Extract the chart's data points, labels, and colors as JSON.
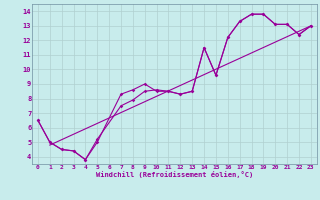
{
  "xlabel": "Windchill (Refroidissement éolien,°C)",
  "bg_color": "#c8ecec",
  "line_color": "#990099",
  "grid_color": "#b0d0d0",
  "xlim": [
    -0.5,
    23.5
  ],
  "ylim": [
    3.5,
    14.5
  ],
  "xticks": [
    0,
    1,
    2,
    3,
    4,
    5,
    6,
    7,
    8,
    9,
    10,
    11,
    12,
    13,
    14,
    15,
    16,
    17,
    18,
    19,
    20,
    21,
    22,
    23
  ],
  "yticks": [
    4,
    5,
    6,
    7,
    8,
    9,
    10,
    11,
    12,
    13,
    14
  ],
  "series": [
    {
      "x": [
        0,
        1,
        2,
        3,
        4,
        5,
        7,
        8,
        9,
        10,
        11,
        12,
        13,
        14,
        15,
        16,
        17,
        18,
        19,
        20,
        21,
        22,
        23
      ],
      "y": [
        6.5,
        5.0,
        4.5,
        4.4,
        3.8,
        5.0,
        8.3,
        8.6,
        9.0,
        8.5,
        8.5,
        8.3,
        8.5,
        11.5,
        9.6,
        12.2,
        13.3,
        13.8,
        13.8,
        13.1,
        13.1,
        12.4,
        13.0
      ]
    },
    {
      "x": [
        0,
        1,
        2,
        3,
        4,
        5,
        7,
        8,
        9,
        10,
        11,
        12,
        13,
        14,
        15,
        16,
        17,
        18,
        19,
        20,
        21,
        22,
        23
      ],
      "y": [
        6.5,
        5.0,
        4.5,
        4.4,
        3.8,
        5.2,
        7.5,
        7.9,
        8.5,
        8.6,
        8.5,
        8.3,
        8.5,
        11.5,
        9.6,
        12.2,
        13.3,
        13.8,
        13.8,
        13.1,
        13.1,
        12.4,
        13.0
      ]
    },
    {
      "x": [
        1,
        23
      ],
      "y": [
        4.8,
        13.0
      ]
    }
  ]
}
